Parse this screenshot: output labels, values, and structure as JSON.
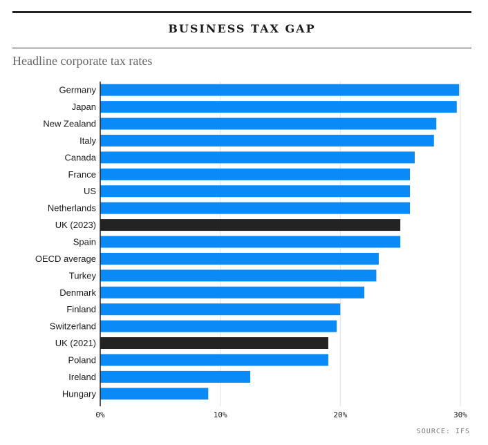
{
  "header": {
    "title": "BUSINESS TAX GAP",
    "subtitle": "Headline corporate tax rates"
  },
  "source": "SOURCE: IFS",
  "colors": {
    "default_bar": "#0a8af7",
    "highlight_bar": "#232323",
    "grid": "#e2e2e2"
  },
  "chart_data": {
    "type": "bar",
    "orientation": "horizontal",
    "title": "BUSINESS TAX GAP",
    "subtitle": "Headline corporate tax rates",
    "xlabel": "",
    "ylabel": "",
    "xlim": [
      0,
      30
    ],
    "x_ticks": [
      0,
      10,
      20,
      30
    ],
    "x_tick_labels": [
      "0%",
      "10%",
      "20%",
      "30%"
    ],
    "grid": true,
    "categories": [
      "Germany",
      "Japan",
      "New Zealand",
      "Italy",
      "Canada",
      "France",
      "US",
      "Netherlands",
      "UK (2023)",
      "Spain",
      "OECD average",
      "Turkey",
      "Denmark",
      "Finland",
      "Switzerland",
      "UK (2021)",
      "Poland",
      "Ireland",
      "Hungary"
    ],
    "values": [
      29.9,
      29.7,
      28,
      27.8,
      26.2,
      25.8,
      25.8,
      25.8,
      25,
      25,
      23.2,
      23,
      22,
      20,
      19.7,
      19,
      19,
      12.5,
      9
    ],
    "highlighted": [
      "UK (2023)",
      "UK (2021)"
    ]
  }
}
